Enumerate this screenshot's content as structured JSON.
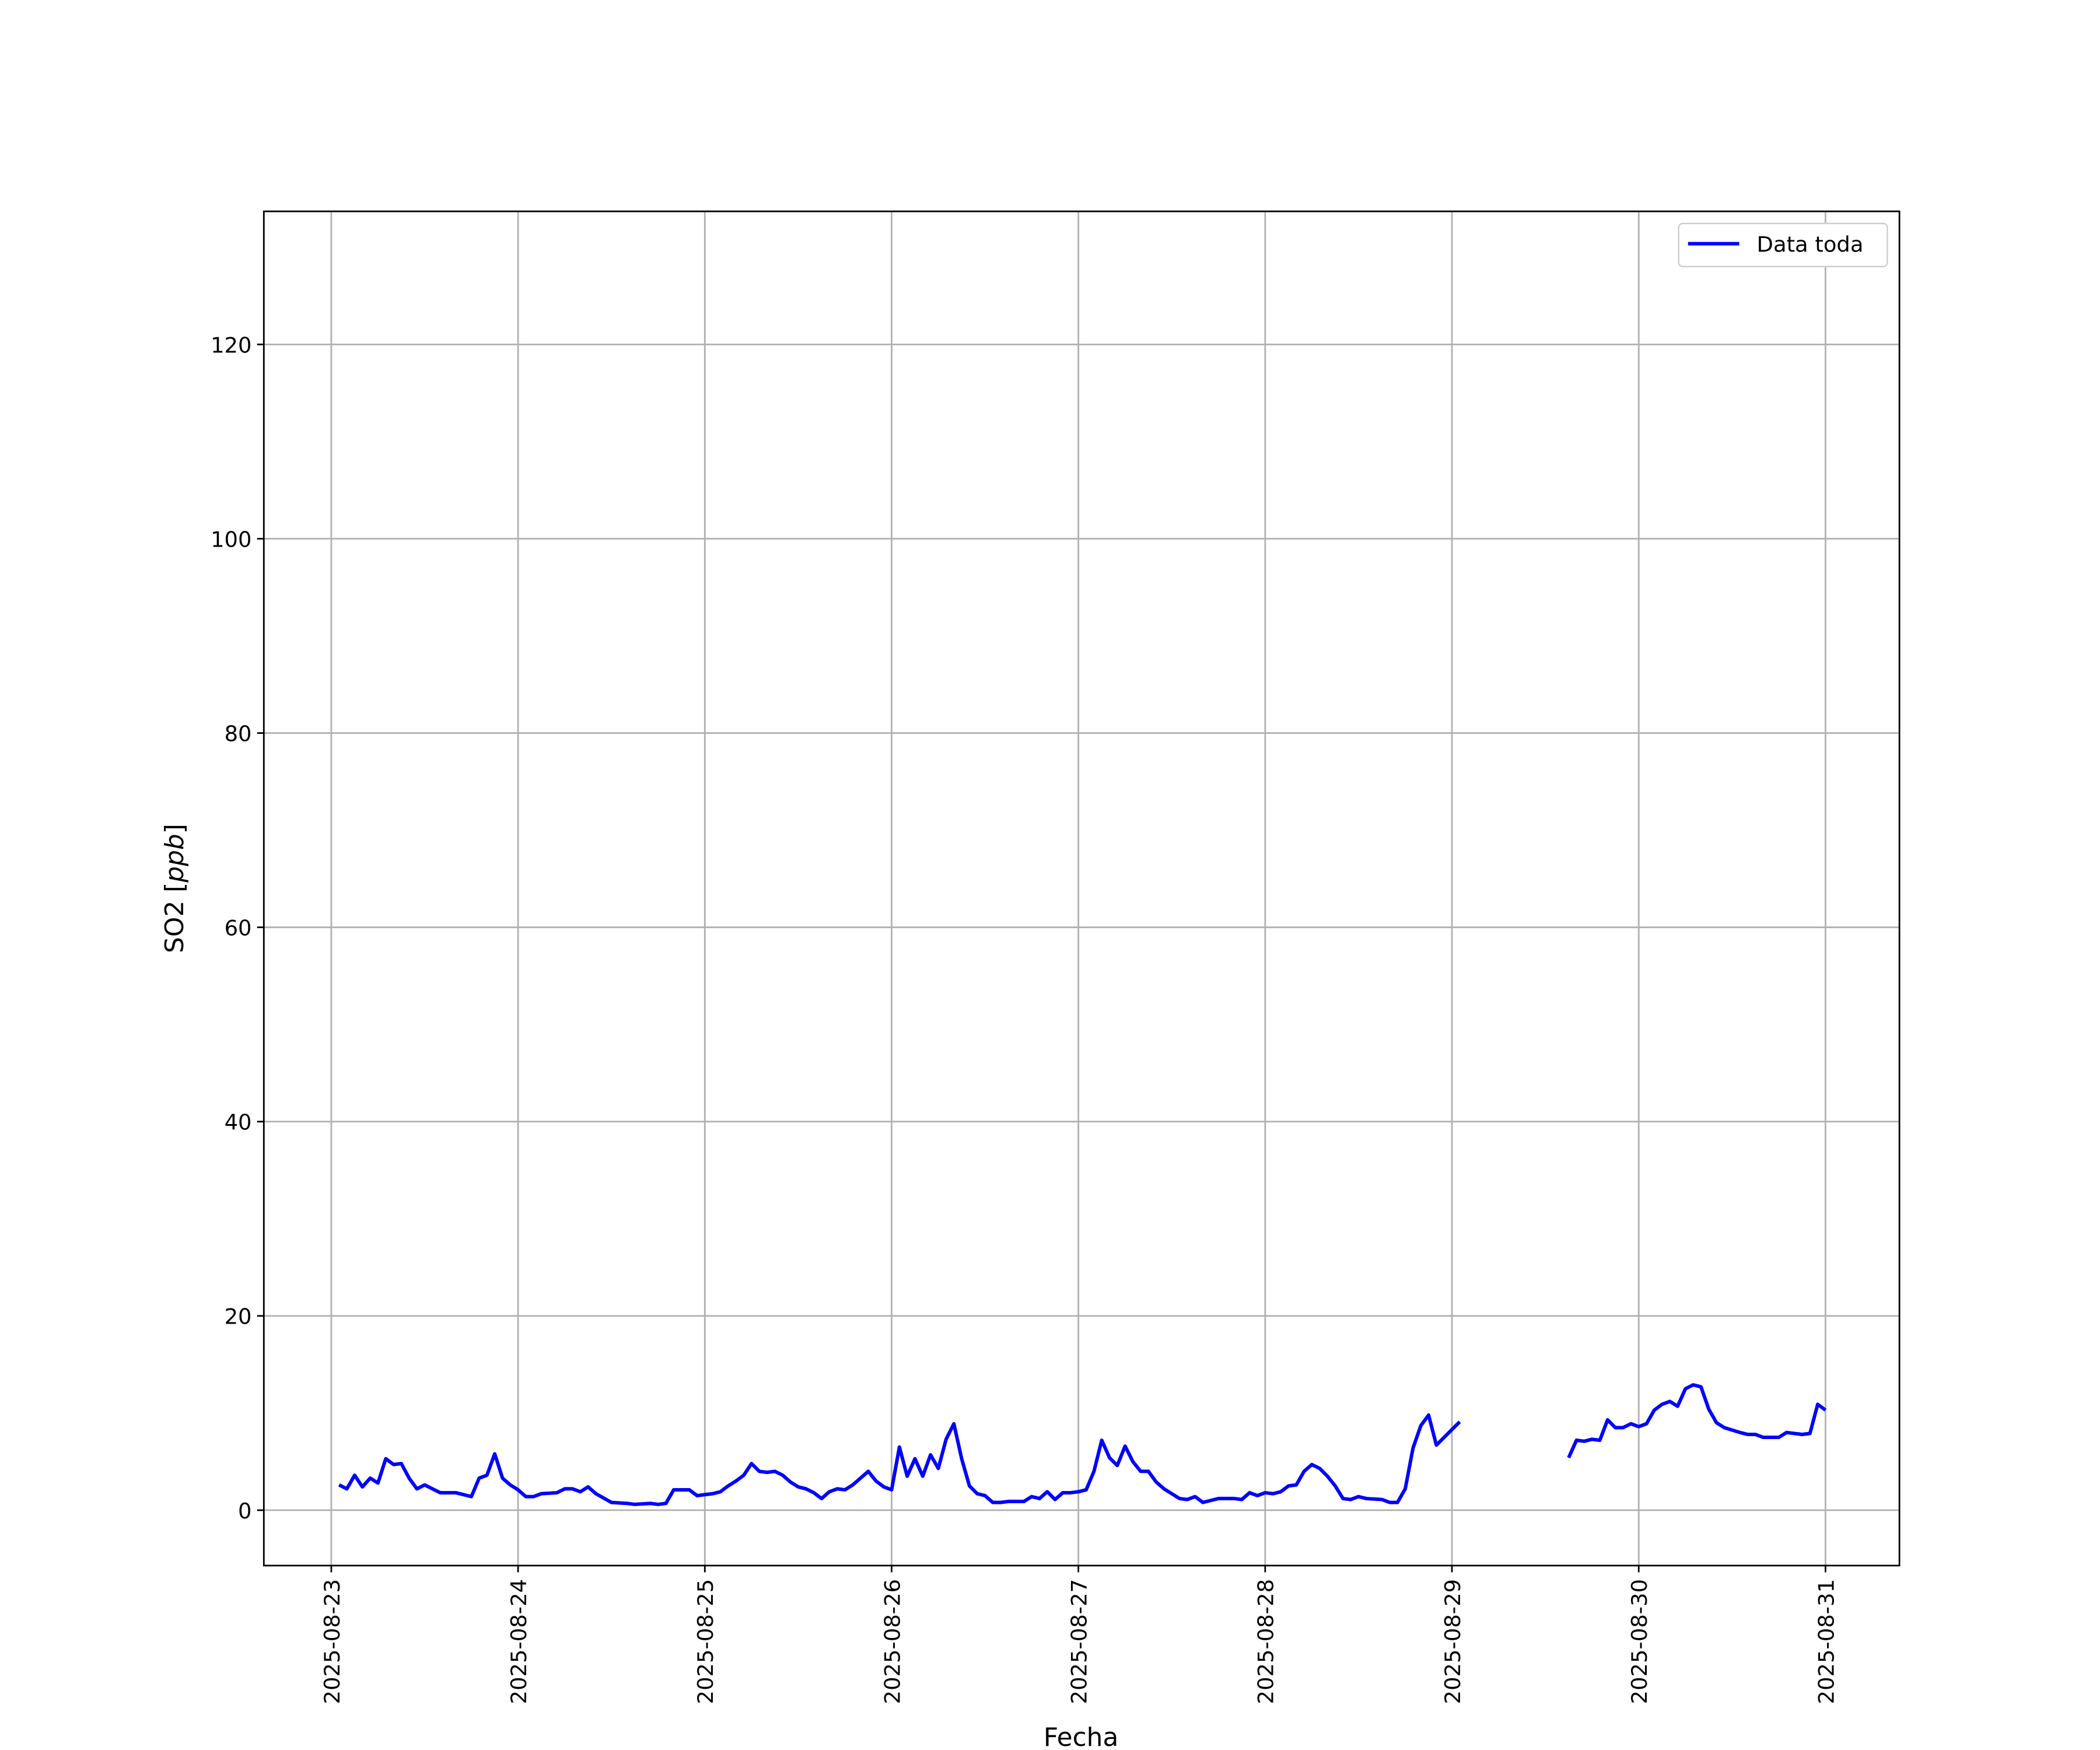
{
  "chart_data": {
    "type": "line",
    "title": "",
    "xlabel": "Fecha",
    "ylabel": "SO2 [",
    "ylabel_italic": "ppb",
    "ylabel_end": "]",
    "xlim": [
      "2025-08-22 15:20",
      "2025-08-31 09:30"
    ],
    "ylim": [
      -5.7,
      133.7
    ],
    "yticks": [
      0,
      20,
      40,
      60,
      80,
      100,
      120
    ],
    "xticks": [
      "2025-08-23",
      "2025-08-24",
      "2025-08-25",
      "2025-08-26",
      "2025-08-27",
      "2025-08-28",
      "2025-08-29",
      "2025-08-30",
      "2025-08-31"
    ],
    "grid": true,
    "legend_position": "top-right",
    "series": [
      {
        "name": "Data toda",
        "color": "#0000ff",
        "points": [
          [
            "2025-08-23 01:00",
            2.6
          ],
          [
            "2025-08-23 02:00",
            2.2
          ],
          [
            "2025-08-23 03:00",
            3.6
          ],
          [
            "2025-08-23 04:00",
            2.4
          ],
          [
            "2025-08-23 05:00",
            3.3
          ],
          [
            "2025-08-23 06:00",
            2.8
          ],
          [
            "2025-08-23 07:00",
            5.3
          ],
          [
            "2025-08-23 08:00",
            4.7
          ],
          [
            "2025-08-23 09:00",
            4.8
          ],
          [
            "2025-08-23 10:00",
            3.3
          ],
          [
            "2025-08-23 11:00",
            2.2
          ],
          [
            "2025-08-23 12:00",
            2.6
          ],
          [
            "2025-08-23 13:00",
            2.2
          ],
          [
            "2025-08-23 14:00",
            1.8
          ],
          [
            "2025-08-23 16:00",
            1.8
          ],
          [
            "2025-08-23 18:00",
            1.4
          ],
          [
            "2025-08-23 19:00",
            3.3
          ],
          [
            "2025-08-23 20:00",
            3.6
          ],
          [
            "2025-08-23 21:00",
            5.8
          ],
          [
            "2025-08-23 22:00",
            3.3
          ],
          [
            "2025-08-23 23:00",
            2.6
          ],
          [
            "2025-08-24 00:00",
            2.1
          ],
          [
            "2025-08-24 01:00",
            1.4
          ],
          [
            "2025-08-24 02:00",
            1.4
          ],
          [
            "2025-08-24 03:00",
            1.7
          ],
          [
            "2025-08-24 05:00",
            1.8
          ],
          [
            "2025-08-24 06:00",
            2.2
          ],
          [
            "2025-08-24 07:00",
            2.2
          ],
          [
            "2025-08-24 08:00",
            1.9
          ],
          [
            "2025-08-24 09:00",
            2.4
          ],
          [
            "2025-08-24 10:00",
            1.7
          ],
          [
            "2025-08-24 12:00",
            0.8
          ],
          [
            "2025-08-24 14:00",
            0.7
          ],
          [
            "2025-08-24 15:00",
            0.6
          ],
          [
            "2025-08-24 17:00",
            0.7
          ],
          [
            "2025-08-24 18:00",
            0.6
          ],
          [
            "2025-08-24 19:00",
            0.7
          ],
          [
            "2025-08-24 20:00",
            2.1
          ],
          [
            "2025-08-24 22:00",
            2.1
          ],
          [
            "2025-08-24 23:00",
            1.5
          ],
          [
            "2025-08-25 00:00",
            1.6
          ],
          [
            "2025-08-25 01:00",
            1.7
          ],
          [
            "2025-08-25 02:00",
            1.9
          ],
          [
            "2025-08-25 03:00",
            2.5
          ],
          [
            "2025-08-25 04:00",
            3.0
          ],
          [
            "2025-08-25 05:00",
            3.6
          ],
          [
            "2025-08-25 06:00",
            4.8
          ],
          [
            "2025-08-25 07:00",
            4.0
          ],
          [
            "2025-08-25 08:00",
            3.9
          ],
          [
            "2025-08-25 09:00",
            4.0
          ],
          [
            "2025-08-25 10:00",
            3.6
          ],
          [
            "2025-08-25 11:00",
            2.9
          ],
          [
            "2025-08-25 12:00",
            2.4
          ],
          [
            "2025-08-25 13:00",
            2.2
          ],
          [
            "2025-08-25 14:00",
            1.8
          ],
          [
            "2025-08-25 15:00",
            1.2
          ],
          [
            "2025-08-25 16:00",
            1.9
          ],
          [
            "2025-08-25 17:00",
            2.2
          ],
          [
            "2025-08-25 18:00",
            2.1
          ],
          [
            "2025-08-25 19:00",
            2.6
          ],
          [
            "2025-08-25 20:00",
            3.3
          ],
          [
            "2025-08-25 21:00",
            4.0
          ],
          [
            "2025-08-25 22:00",
            3.0
          ],
          [
            "2025-08-25 23:00",
            2.4
          ],
          [
            "2025-08-26 00:00",
            2.1
          ],
          [
            "2025-08-26 01:00",
            6.5
          ],
          [
            "2025-08-26 02:00",
            3.5
          ],
          [
            "2025-08-26 03:00",
            5.3
          ],
          [
            "2025-08-26 04:00",
            3.5
          ],
          [
            "2025-08-26 05:00",
            5.7
          ],
          [
            "2025-08-26 06:00",
            4.3
          ],
          [
            "2025-08-26 07:00",
            7.3
          ],
          [
            "2025-08-26 08:00",
            8.9
          ],
          [
            "2025-08-26 09:00",
            5.3
          ],
          [
            "2025-08-26 10:00",
            2.5
          ],
          [
            "2025-08-26 11:00",
            1.7
          ],
          [
            "2025-08-26 12:00",
            1.5
          ],
          [
            "2025-08-26 13:00",
            0.8
          ],
          [
            "2025-08-26 14:00",
            0.8
          ],
          [
            "2025-08-26 15:00",
            0.9
          ],
          [
            "2025-08-26 17:00",
            0.9
          ],
          [
            "2025-08-26 18:00",
            1.4
          ],
          [
            "2025-08-26 19:00",
            1.2
          ],
          [
            "2025-08-26 20:00",
            1.9
          ],
          [
            "2025-08-26 21:00",
            1.1
          ],
          [
            "2025-08-26 22:00",
            1.8
          ],
          [
            "2025-08-26 23:00",
            1.8
          ],
          [
            "2025-08-27 00:00",
            1.9
          ],
          [
            "2025-08-27 01:00",
            2.1
          ],
          [
            "2025-08-27 02:00",
            4.0
          ],
          [
            "2025-08-27 03:00",
            7.2
          ],
          [
            "2025-08-27 04:00",
            5.4
          ],
          [
            "2025-08-27 05:00",
            4.6
          ],
          [
            "2025-08-27 06:00",
            6.6
          ],
          [
            "2025-08-27 07:00",
            5.0
          ],
          [
            "2025-08-27 08:00",
            4.0
          ],
          [
            "2025-08-27 09:00",
            4.0
          ],
          [
            "2025-08-27 10:00",
            2.9
          ],
          [
            "2025-08-27 11:00",
            2.2
          ],
          [
            "2025-08-27 12:00",
            1.7
          ],
          [
            "2025-08-27 13:00",
            1.2
          ],
          [
            "2025-08-27 14:00",
            1.1
          ],
          [
            "2025-08-27 15:00",
            1.4
          ],
          [
            "2025-08-27 16:00",
            0.8
          ],
          [
            "2025-08-27 17:00",
            1.0
          ],
          [
            "2025-08-27 18:00",
            1.2
          ],
          [
            "2025-08-27 20:00",
            1.2
          ],
          [
            "2025-08-27 21:00",
            1.1
          ],
          [
            "2025-08-27 22:00",
            1.8
          ],
          [
            "2025-08-27 23:00",
            1.5
          ],
          [
            "2025-08-28 00:00",
            1.8
          ],
          [
            "2025-08-28 01:00",
            1.7
          ],
          [
            "2025-08-28 02:00",
            1.9
          ],
          [
            "2025-08-28 03:00",
            2.5
          ],
          [
            "2025-08-28 04:00",
            2.6
          ],
          [
            "2025-08-28 05:00",
            4.0
          ],
          [
            "2025-08-28 06:00",
            4.7
          ],
          [
            "2025-08-28 07:00",
            4.3
          ],
          [
            "2025-08-28 08:00",
            3.5
          ],
          [
            "2025-08-28 09:00",
            2.5
          ],
          [
            "2025-08-28 10:00",
            1.2
          ],
          [
            "2025-08-28 11:00",
            1.1
          ],
          [
            "2025-08-28 12:00",
            1.4
          ],
          [
            "2025-08-28 13:00",
            1.2
          ],
          [
            "2025-08-28 15:00",
            1.1
          ],
          [
            "2025-08-28 16:00",
            0.8
          ],
          [
            "2025-08-28 17:00",
            0.8
          ],
          [
            "2025-08-28 18:00",
            2.2
          ],
          [
            "2025-08-28 19:00",
            6.4
          ],
          [
            "2025-08-28 20:00",
            8.7
          ],
          [
            "2025-08-28 21:00",
            9.8
          ],
          [
            "2025-08-28 22:00",
            6.7
          ],
          [
            "2025-08-28 23:00",
            7.5
          ],
          [
            "2025-08-29 01:00",
            9.1
          ],
          [
            "2025-08-29 15:00",
            5.4
          ],
          [
            "2025-08-29 16:00",
            7.2
          ],
          [
            "2025-08-29 17:00",
            7.1
          ],
          [
            "2025-08-29 18:00",
            7.3
          ],
          [
            "2025-08-29 19:00",
            7.2
          ],
          [
            "2025-08-29 20:00",
            9.3
          ],
          [
            "2025-08-29 21:00",
            8.5
          ],
          [
            "2025-08-29 22:00",
            8.5
          ],
          [
            "2025-08-29 23:00",
            8.9
          ],
          [
            "2025-08-30 00:00",
            8.6
          ],
          [
            "2025-08-30 01:00",
            8.9
          ],
          [
            "2025-08-30 02:00",
            10.3
          ],
          [
            "2025-08-30 03:00",
            10.9
          ],
          [
            "2025-08-30 04:00",
            11.2
          ],
          [
            "2025-08-30 05:00",
            10.7
          ],
          [
            "2025-08-30 06:00",
            12.5
          ],
          [
            "2025-08-30 07:00",
            12.9
          ],
          [
            "2025-08-30 08:00",
            12.7
          ],
          [
            "2025-08-30 09:00",
            10.4
          ],
          [
            "2025-08-30 10:00",
            9.0
          ],
          [
            "2025-08-30 11:00",
            8.5
          ],
          [
            "2025-08-30 13:00",
            8.0
          ],
          [
            "2025-08-30 14:00",
            7.8
          ],
          [
            "2025-08-30 15:00",
            7.8
          ],
          [
            "2025-08-30 16:00",
            7.5
          ],
          [
            "2025-08-30 18:00",
            7.5
          ],
          [
            "2025-08-30 19:00",
            8.0
          ],
          [
            "2025-08-30 21:00",
            7.8
          ],
          [
            "2025-08-30 22:00",
            7.9
          ],
          [
            "2025-08-30 23:00",
            10.9
          ],
          [
            "2025-08-31 00:00",
            10.3
          ]
        ]
      }
    ]
  }
}
